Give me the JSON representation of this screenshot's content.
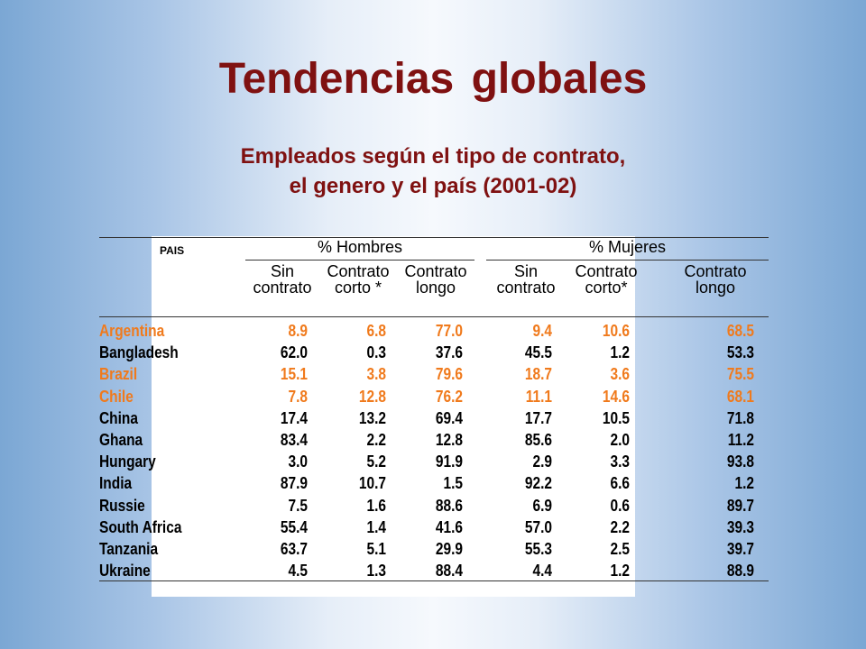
{
  "title": "Tendencias globales",
  "subtitle": {
    "line1": "Empleados según el tipo de contrato,",
    "line2": "el genero y el país (2001-02)"
  },
  "colors": {
    "title": "#7f1111",
    "highlight": "#f07a1c",
    "text": "#000000"
  },
  "table": {
    "pais_label": "PAIS",
    "group_men": "% Hombres",
    "group_women": "% Mujeres",
    "men_cols": [
      {
        "l1": "Sin",
        "l2": "contrato"
      },
      {
        "l1": "Contrato",
        "l2": "corto *"
      },
      {
        "l1": "Contrato",
        "l2": "longo"
      }
    ],
    "women_cols": [
      {
        "l1": "Sin",
        "l2": "contrato"
      },
      {
        "l1": "Contrato",
        "l2": "corto*"
      },
      {
        "l1": "Contrato",
        "l2": "longo"
      }
    ],
    "rows": [
      {
        "country": "Argentina",
        "highlight": true,
        "men": [
          "8.9",
          "6.8",
          "77.0"
        ],
        "women": [
          "9.4",
          "10.6",
          "68.5"
        ]
      },
      {
        "country": "Bangladesh",
        "highlight": false,
        "men": [
          "62.0",
          "0.3",
          "37.6"
        ],
        "women": [
          "45.5",
          "1.2",
          "53.3"
        ]
      },
      {
        "country": "Brazil",
        "highlight": true,
        "men": [
          "15.1",
          "3.8",
          "79.6"
        ],
        "women": [
          "18.7",
          "3.6",
          "75.5"
        ]
      },
      {
        "country": "Chile",
        "highlight": true,
        "men": [
          "7.8",
          "12.8",
          "76.2"
        ],
        "women": [
          "11.1",
          "14.6",
          "68.1"
        ]
      },
      {
        "country": "China",
        "highlight": false,
        "men": [
          "17.4",
          "13.2",
          "69.4"
        ],
        "women": [
          "17.7",
          "10.5",
          "71.8"
        ]
      },
      {
        "country": "Ghana",
        "highlight": false,
        "men": [
          "83.4",
          "2.2",
          "12.8"
        ],
        "women": [
          "85.6",
          "2.0",
          "11.2"
        ]
      },
      {
        "country": "Hungary",
        "highlight": false,
        "men": [
          "3.0",
          "5.2",
          "91.9"
        ],
        "women": [
          "2.9",
          "3.3",
          "93.8"
        ]
      },
      {
        "country": "India",
        "highlight": false,
        "men": [
          "87.9",
          "10.7",
          "1.5"
        ],
        "women": [
          "92.2",
          "6.6",
          "1.2"
        ]
      },
      {
        "country": "Russie",
        "highlight": false,
        "men": [
          "7.5",
          "1.6",
          "88.6"
        ],
        "women": [
          "6.9",
          "0.6",
          "89.7"
        ]
      },
      {
        "country": "South Africa",
        "highlight": false,
        "men": [
          "55.4",
          "1.4",
          "41.6"
        ],
        "women": [
          "57.0",
          "2.2",
          "39.3"
        ]
      },
      {
        "country": "Tanzania",
        "highlight": false,
        "men": [
          "63.7",
          "5.1",
          "29.9"
        ],
        "women": [
          "55.3",
          "2.5",
          "39.7"
        ]
      },
      {
        "country": "Ukraine",
        "highlight": false,
        "men": [
          "4.5",
          "1.3",
          "88.4"
        ],
        "women": [
          "4.4",
          "1.2",
          "88.9"
        ]
      }
    ]
  }
}
